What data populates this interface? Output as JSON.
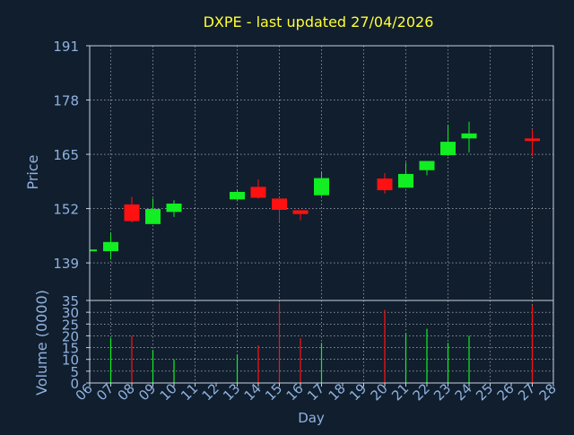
{
  "chart_data": {
    "type": "candlestick",
    "title": "DXPE - last updated 27/04/2026",
    "xlabel": "Day",
    "price_panel": {
      "ylabel": "Price",
      "ylim": [
        130,
        191
      ],
      "yticks": [
        "191",
        "178",
        "165",
        "152",
        "139"
      ],
      "ytick_values": [
        191,
        178,
        165,
        152,
        139
      ]
    },
    "volume_panel": {
      "ylabel": "Volume (0000)",
      "ylim": [
        0,
        35
      ],
      "yticks": [
        "35",
        "30",
        "25",
        "20",
        "15",
        "10",
        "5",
        "0"
      ],
      "ytick_values": [
        35,
        30,
        25,
        20,
        15,
        10,
        5,
        0
      ]
    },
    "x_ticks": [
      "06",
      "07",
      "08",
      "09",
      "10",
      "11",
      "12",
      "13",
      "14",
      "15",
      "16",
      "17",
      "18",
      "19",
      "20",
      "21",
      "22",
      "23",
      "24",
      "25",
      "26",
      "27",
      "28"
    ],
    "grid": true,
    "colors": {
      "background": "#111e2e",
      "title": "#ffff33",
      "axis_text": "#8fb2de",
      "up": "#11ee22",
      "down": "#ff1111",
      "grid": "#ffffff",
      "frame": "#c8d2dc"
    },
    "candles": [
      {
        "day": "06",
        "open": 142.0,
        "high": 142.2,
        "low": 141.8,
        "close": 142.2,
        "volume": 0
      },
      {
        "day": "07",
        "open": 141.8,
        "high": 146.2,
        "low": 139.8,
        "close": 144.0,
        "volume": 19
      },
      {
        "day": "08",
        "open": 153.0,
        "high": 154.8,
        "low": 148.7,
        "close": 149.0,
        "volume": 20
      },
      {
        "day": "09",
        "open": 148.3,
        "high": 154.4,
        "low": 148.3,
        "close": 151.9,
        "volume": 14
      },
      {
        "day": "10",
        "open": 151.2,
        "high": 154.0,
        "low": 150.0,
        "close": 153.2,
        "volume": 10
      },
      {
        "day": "13",
        "open": 154.2,
        "high": 156.6,
        "low": 154.0,
        "close": 156.0,
        "volume": 12
      },
      {
        "day": "14",
        "open": 157.2,
        "high": 159.0,
        "low": 154.4,
        "close": 154.6,
        "volume": 16
      },
      {
        "day": "15",
        "open": 154.4,
        "high": 154.4,
        "low": 148.8,
        "close": 151.7,
        "volume": 34
      },
      {
        "day": "16",
        "open": 151.6,
        "high": 151.6,
        "low": 149.2,
        "close": 150.7,
        "volume": 19
      },
      {
        "day": "17",
        "open": 155.2,
        "high": 160.8,
        "low": 155.0,
        "close": 159.3,
        "volume": 17
      },
      {
        "day": "20",
        "open": 159.2,
        "high": 160.5,
        "low": 155.6,
        "close": 156.4,
        "volume": 31
      },
      {
        "day": "21",
        "open": 157.0,
        "high": 163.0,
        "low": 157.0,
        "close": 160.3,
        "volume": 21
      },
      {
        "day": "22",
        "open": 161.2,
        "high": 163.4,
        "low": 160.0,
        "close": 163.4,
        "volume": 23
      },
      {
        "day": "23",
        "open": 164.8,
        "high": 172.0,
        "low": 164.6,
        "close": 168.0,
        "volume": 17
      },
      {
        "day": "24",
        "open": 168.8,
        "high": 172.8,
        "low": 165.4,
        "close": 170.0,
        "volume": 20
      },
      {
        "day": "27",
        "open": 168.8,
        "high": 170.8,
        "low": 164.6,
        "close": 168.2,
        "volume": 33
      }
    ]
  }
}
